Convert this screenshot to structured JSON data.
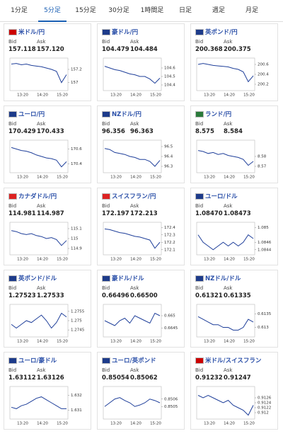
{
  "tabs": [
    "1分足",
    "5分足",
    "15分足",
    "30分足",
    "1時間足",
    "日足",
    "週足",
    "月足"
  ],
  "active_tab": 1,
  "labels": {
    "bid": "Bid",
    "ask": "Ask"
  },
  "time_labels": [
    "13:20",
    "14:20",
    "15:20"
  ],
  "cards": [
    {
      "name": "米ドル/円",
      "bid": "157.118",
      "ask": "157.120",
      "ylim": [
        156.9,
        157.35
      ],
      "yticks": [
        157.2,
        157
      ],
      "values": [
        157.28,
        157.29,
        157.27,
        157.28,
        157.26,
        157.25,
        157.24,
        157.22,
        157.2,
        157.17,
        157.0,
        157.12
      ]
    },
    {
      "name": "豪ドル/円",
      "bid": "104.479",
      "ask": "104.484",
      "ylim": [
        104.35,
        104.7
      ],
      "yticks": [
        104.6,
        104.5,
        104.4
      ],
      "values": [
        104.62,
        104.6,
        104.58,
        104.57,
        104.55,
        104.53,
        104.52,
        104.5,
        104.5,
        104.47,
        104.42,
        104.48
      ]
    },
    {
      "name": "英ポンド/円",
      "bid": "200.368",
      "ask": "200.375",
      "ylim": [
        200.1,
        200.7
      ],
      "yticks": [
        200.6,
        200.4,
        200.2
      ],
      "values": [
        200.6,
        200.62,
        200.6,
        200.58,
        200.57,
        200.56,
        200.55,
        200.52,
        200.5,
        200.45,
        200.25,
        200.37
      ]
    },
    {
      "name": "ユーロ/円",
      "bid": "170.429",
      "ask": "170.433",
      "ylim": [
        170.3,
        170.7
      ],
      "yticks": [
        170.6,
        170.4
      ],
      "values": [
        170.62,
        170.6,
        170.58,
        170.57,
        170.55,
        170.52,
        170.5,
        170.48,
        170.47,
        170.45,
        170.36,
        170.43
      ]
    },
    {
      "name": "NZドル/円",
      "bid": "96.356",
      "ask": "96.363",
      "ylim": [
        96.25,
        96.55
      ],
      "yticks": [
        96.5,
        96.4,
        96.3
      ],
      "values": [
        96.48,
        96.47,
        96.44,
        96.43,
        96.42,
        96.4,
        96.39,
        96.37,
        96.37,
        96.35,
        96.3,
        96.36
      ]
    },
    {
      "name": "ランド/円",
      "bid": "8.575",
      "ask": "8.584",
      "ylim": [
        8.565,
        8.595
      ],
      "yticks": [
        8.58,
        8.57
      ],
      "values": [
        8.586,
        8.585,
        8.583,
        8.584,
        8.582,
        8.583,
        8.581,
        8.58,
        8.579,
        8.577,
        8.571,
        8.575
      ]
    },
    {
      "name": "カナダドル/円",
      "bid": "114.981",
      "ask": "114.987",
      "ylim": [
        114.85,
        115.15
      ],
      "yticks": [
        115.1,
        115,
        114.9
      ],
      "values": [
        115.08,
        115.07,
        115.05,
        115.04,
        115.05,
        115.03,
        115.02,
        115.0,
        115.01,
        114.99,
        114.93,
        114.98
      ]
    },
    {
      "name": "スイスフラン/円",
      "bid": "172.197",
      "ask": "172.213",
      "ylim": [
        172.05,
        172.45
      ],
      "yticks": [
        172.4,
        172.3,
        172.2,
        172.1
      ],
      "values": [
        172.38,
        172.37,
        172.35,
        172.33,
        172.32,
        172.3,
        172.28,
        172.27,
        172.25,
        172.23,
        172.12,
        172.2
      ]
    },
    {
      "name": "ユーロ/ドル",
      "bid": "1.08470",
      "ask": "1.08473",
      "ylim": [
        1.0843,
        1.0851
      ],
      "yticks": [
        1.085,
        1.0846,
        1.0844
      ],
      "values": [
        1.0848,
        1.0846,
        1.0845,
        1.0844,
        1.0845,
        1.0846,
        1.0845,
        1.0846,
        1.0845,
        1.0846,
        1.0848,
        1.0847
      ]
    },
    {
      "name": "英ポンド/ドル",
      "bid": "1.27523",
      "ask": "1.27533",
      "ylim": [
        1.2742,
        1.2758
      ],
      "yticks": [
        1.2755,
        1.275,
        1.2745
      ],
      "values": [
        1.2748,
        1.2746,
        1.2748,
        1.275,
        1.2749,
        1.2751,
        1.2753,
        1.275,
        1.2746,
        1.2749,
        1.2754,
        1.2752
      ]
    },
    {
      "name": "豪ドル/ドル",
      "bid": "0.66496",
      "ask": "0.66500",
      "ylim": [
        0.6642,
        0.6654
      ],
      "yticks": [
        0.665,
        0.6645
      ],
      "values": [
        0.6648,
        0.6647,
        0.6646,
        0.6648,
        0.6649,
        0.6647,
        0.665,
        0.6649,
        0.6648,
        0.6647,
        0.6651,
        0.665
      ]
    },
    {
      "name": "NZドル/ドル",
      "bid": "0.61321",
      "ask": "0.61335",
      "ylim": [
        0.6127,
        0.6138
      ],
      "yticks": [
        0.6135,
        0.613
      ],
      "values": [
        0.6134,
        0.6133,
        0.6132,
        0.6131,
        0.6131,
        0.613,
        0.613,
        0.6129,
        0.6129,
        0.613,
        0.6133,
        0.6132
      ]
    },
    {
      "name": "ユーロ/豪ドル",
      "bid": "1.63112",
      "ask": "1.63126",
      "ylim": [
        1.6305,
        1.6325
      ],
      "yticks": [
        1.632,
        1.631
      ],
      "values": [
        1.6312,
        1.6311,
        1.6313,
        1.6314,
        1.6316,
        1.6318,
        1.6319,
        1.6317,
        1.6315,
        1.6313,
        1.6311,
        1.6311
      ]
    },
    {
      "name": "ユーロ/英ポンド",
      "bid": "0.85054",
      "ask": "0.85062",
      "ylim": [
        0.85035,
        0.85075
      ],
      "yticks": [
        0.8506,
        0.8505
      ],
      "values": [
        0.8505,
        0.85055,
        0.8506,
        0.85062,
        0.85058,
        0.85055,
        0.8505,
        0.85052,
        0.85055,
        0.8506,
        0.85058,
        0.85055
      ]
    },
    {
      "name": "米ドル/スイスフラン",
      "bid": "0.91232",
      "ask": "0.91247",
      "ylim": [
        0.9118,
        0.913
      ],
      "yticks": [
        0.9126,
        0.9124,
        0.9122,
        0.912
      ],
      "values": [
        0.9127,
        0.9126,
        0.9127,
        0.9126,
        0.9125,
        0.9124,
        0.9125,
        0.9123,
        0.9122,
        0.9121,
        0.9119,
        0.9123
      ]
    }
  ]
}
